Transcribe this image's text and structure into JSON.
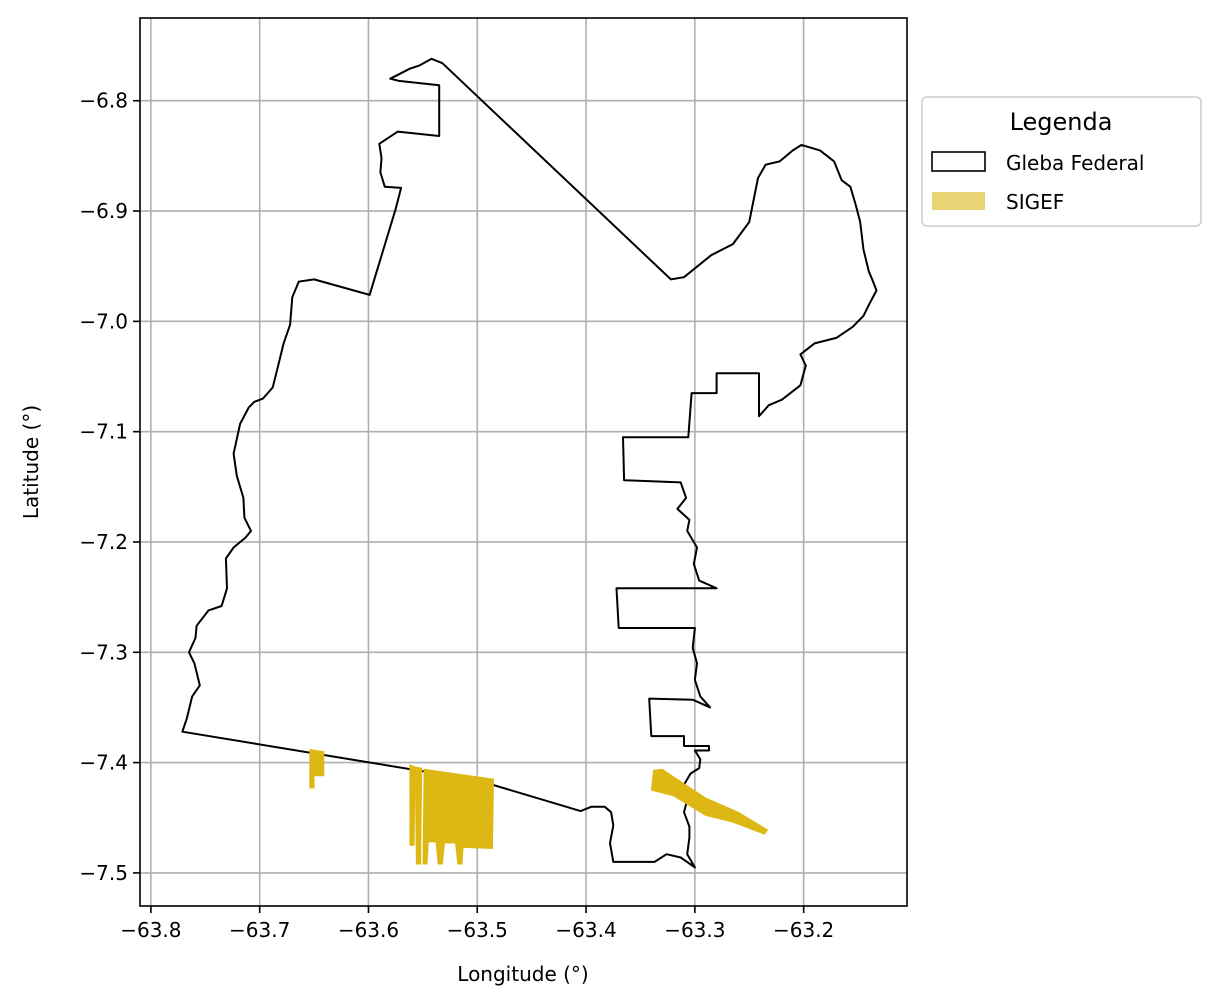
{
  "chart_data": {
    "type": "map",
    "xlabel": "Longitude (°)",
    "ylabel": "Latitude (°)",
    "xlim": [
      -63.81,
      -63.105
    ],
    "ylim": [
      -7.53,
      -6.725
    ],
    "x_ticks": [
      -63.8,
      -63.7,
      -63.6,
      -63.5,
      -63.4,
      -63.3,
      -63.2
    ],
    "x_tick_labels": [
      "−63.8",
      "−63.7",
      "−63.6",
      "−63.5",
      "−63.4",
      "−63.3",
      "−63.2"
    ],
    "y_ticks": [
      -6.8,
      -6.9,
      -7.0,
      -7.1,
      -7.2,
      -7.3,
      -7.4,
      -7.5
    ],
    "y_tick_labels": [
      "−6.8",
      "−6.9",
      "−7.0",
      "−7.1",
      "−7.2",
      "−7.3",
      "−7.4",
      "−7.5"
    ],
    "grid": true,
    "legend": {
      "title": "Legenda",
      "placement": "outside-right-top",
      "entries": [
        {
          "label": "Gleba Federal",
          "style": "outline",
          "color": "#000000"
        },
        {
          "label": "SIGEF",
          "style": "fill",
          "color": "#E8D474"
        }
      ]
    },
    "layers": [
      {
        "name": "Gleba Federal",
        "color": "#000000",
        "fill": "none",
        "polygons": [
          [
            [
              -63.532,
              -6.766
            ],
            [
              -63.542,
              -6.762
            ],
            [
              -63.553,
              -6.768
            ],
            [
              -63.562,
              -6.771
            ],
            [
              -63.572,
              -6.776
            ],
            [
              -63.58,
              -6.78
            ],
            [
              -63.572,
              -6.782
            ],
            [
              -63.535,
              -6.786
            ],
            [
              -63.535,
              -6.832
            ],
            [
              -63.573,
              -6.828
            ],
            [
              -63.59,
              -6.839
            ],
            [
              -63.588,
              -6.852
            ],
            [
              -63.589,
              -6.865
            ],
            [
              -63.585,
              -6.878
            ],
            [
              -63.57,
              -6.879
            ],
            [
              -63.575,
              -6.898
            ],
            [
              -63.599,
              -6.976
            ],
            [
              -63.65,
              -6.962
            ],
            [
              -63.664,
              -6.964
            ],
            [
              -63.67,
              -6.978
            ],
            [
              -63.672,
              -7.003
            ],
            [
              -63.678,
              -7.02
            ],
            [
              -63.683,
              -7.04
            ],
            [
              -63.688,
              -7.06
            ],
            [
              -63.697,
              -7.07
            ],
            [
              -63.705,
              -7.073
            ],
            [
              -63.71,
              -7.078
            ],
            [
              -63.718,
              -7.093
            ],
            [
              -63.724,
              -7.12
            ],
            [
              -63.721,
              -7.14
            ],
            [
              -63.715,
              -7.16
            ],
            [
              -63.714,
              -7.178
            ],
            [
              -63.708,
              -7.19
            ],
            [
              -63.713,
              -7.196
            ],
            [
              -63.724,
              -7.205
            ],
            [
              -63.731,
              -7.215
            ],
            [
              -63.73,
              -7.242
            ],
            [
              -63.735,
              -7.258
            ],
            [
              -63.747,
              -7.262
            ],
            [
              -63.758,
              -7.276
            ],
            [
              -63.759,
              -7.287
            ],
            [
              -63.765,
              -7.3
            ],
            [
              -63.76,
              -7.31
            ],
            [
              -63.755,
              -7.33
            ],
            [
              -63.762,
              -7.34
            ],
            [
              -63.767,
              -7.36
            ],
            [
              -63.771,
              -7.372
            ],
            [
              -63.5,
              -7.416
            ],
            [
              -63.405,
              -7.444
            ],
            [
              -63.395,
              -7.44
            ],
            [
              -63.383,
              -7.44
            ],
            [
              -63.377,
              -7.445
            ],
            [
              -63.375,
              -7.457
            ],
            [
              -63.378,
              -7.473
            ],
            [
              -63.375,
              -7.49
            ],
            [
              -63.36,
              -7.49
            ],
            [
              -63.337,
              -7.49
            ],
            [
              -63.326,
              -7.483
            ],
            [
              -63.313,
              -7.486
            ],
            [
              -63.3,
              -7.495
            ],
            [
              -63.307,
              -7.483
            ],
            [
              -63.305,
              -7.468
            ],
            [
              -63.305,
              -7.458
            ],
            [
              -63.31,
              -7.445
            ],
            [
              -63.306,
              -7.43
            ],
            [
              -63.31,
              -7.42
            ],
            [
              -63.304,
              -7.41
            ],
            [
              -63.296,
              -7.405
            ],
            [
              -63.295,
              -7.397
            ],
            [
              -63.3,
              -7.389
            ],
            [
              -63.287,
              -7.389
            ],
            [
              -63.287,
              -7.385
            ],
            [
              -63.31,
              -7.385
            ],
            [
              -63.31,
              -7.376
            ],
            [
              -63.34,
              -7.376
            ],
            [
              -63.342,
              -7.342
            ],
            [
              -63.302,
              -7.343
            ],
            [
              -63.286,
              -7.35
            ],
            [
              -63.295,
              -7.34
            ],
            [
              -63.3,
              -7.325
            ],
            [
              -63.298,
              -7.31
            ],
            [
              -63.302,
              -7.296
            ],
            [
              -63.3,
              -7.278
            ],
            [
              -63.37,
              -7.278
            ],
            [
              -63.372,
              -7.242
            ],
            [
              -63.28,
              -7.242
            ],
            [
              -63.296,
              -7.235
            ],
            [
              -63.301,
              -7.22
            ],
            [
              -63.298,
              -7.205
            ],
            [
              -63.307,
              -7.19
            ],
            [
              -63.305,
              -7.18
            ],
            [
              -63.316,
              -7.17
            ],
            [
              -63.308,
              -7.16
            ],
            [
              -63.313,
              -7.146
            ],
            [
              -63.365,
              -7.144
            ],
            [
              -63.366,
              -7.105
            ],
            [
              -63.306,
              -7.105
            ],
            [
              -63.303,
              -7.065
            ],
            [
              -63.28,
              -7.065
            ],
            [
              -63.28,
              -7.047
            ],
            [
              -63.241,
              -7.047
            ],
            [
              -63.241,
              -7.086
            ],
            [
              -63.232,
              -7.076
            ],
            [
              -63.22,
              -7.071
            ],
            [
              -63.203,
              -7.058
            ],
            [
              -63.198,
              -7.04
            ],
            [
              -63.203,
              -7.03
            ],
            [
              -63.19,
              -7.02
            ],
            [
              -63.17,
              -7.015
            ],
            [
              -63.155,
              -7.005
            ],
            [
              -63.145,
              -6.995
            ],
            [
              -63.14,
              -6.985
            ],
            [
              -63.133,
              -6.972
            ],
            [
              -63.137,
              -6.962
            ],
            [
              -63.14,
              -6.955
            ],
            [
              -63.145,
              -6.935
            ],
            [
              -63.148,
              -6.91
            ],
            [
              -63.152,
              -6.895
            ],
            [
              -63.157,
              -6.878
            ],
            [
              -63.165,
              -6.872
            ],
            [
              -63.172,
              -6.855
            ],
            [
              -63.185,
              -6.845
            ],
            [
              -63.202,
              -6.84
            ],
            [
              -63.21,
              -6.845
            ],
            [
              -63.222,
              -6.855
            ],
            [
              -63.235,
              -6.858
            ],
            [
              -63.242,
              -6.87
            ],
            [
              -63.245,
              -6.885
            ],
            [
              -63.25,
              -6.91
            ],
            [
              -63.265,
              -6.93
            ],
            [
              -63.285,
              -6.94
            ],
            [
              -63.31,
              -6.96
            ],
            [
              -63.322,
              -6.962
            ],
            [
              -63.532,
              -6.766
            ]
          ]
        ]
      },
      {
        "name": "SIGEF",
        "color": "#DDB815",
        "polygons": [
          [
            [
              -63.654,
              -7.388
            ],
            [
              -63.641,
              -7.39
            ],
            [
              -63.641,
              -7.412
            ],
            [
              -63.65,
              -7.412
            ],
            [
              -63.65,
              -7.423
            ],
            [
              -63.654,
              -7.423
            ]
          ],
          [
            [
              -63.562,
              -7.402
            ],
            [
              -63.557,
              -7.404
            ],
            [
              -63.558,
              -7.475
            ],
            [
              -63.562,
              -7.475
            ]
          ],
          [
            [
              -63.557,
              -7.404
            ],
            [
              -63.551,
              -7.405
            ],
            [
              -63.552,
              -7.492
            ],
            [
              -63.556,
              -7.492
            ]
          ],
          [
            [
              -63.549,
              -7.406
            ],
            [
              -63.485,
              -7.415
            ],
            [
              -63.486,
              -7.478
            ],
            [
              -63.513,
              -7.477
            ],
            [
              -63.514,
              -7.492
            ],
            [
              -63.518,
              -7.492
            ],
            [
              -63.52,
              -7.473
            ],
            [
              -63.53,
              -7.473
            ],
            [
              -63.532,
              -7.492
            ],
            [
              -63.536,
              -7.492
            ],
            [
              -63.538,
              -7.472
            ],
            [
              -63.545,
              -7.472
            ],
            [
              -63.546,
              -7.492
            ],
            [
              -63.55,
              -7.492
            ]
          ],
          [
            [
              -63.338,
              -7.407
            ],
            [
              -63.33,
              -7.406
            ],
            [
              -63.29,
              -7.432
            ],
            [
              -63.26,
              -7.445
            ],
            [
              -63.233,
              -7.461
            ],
            [
              -63.236,
              -7.465
            ],
            [
              -63.265,
              -7.454
            ],
            [
              -63.29,
              -7.448
            ],
            [
              -63.32,
              -7.43
            ],
            [
              -63.34,
              -7.425
            ]
          ]
        ]
      }
    ]
  }
}
